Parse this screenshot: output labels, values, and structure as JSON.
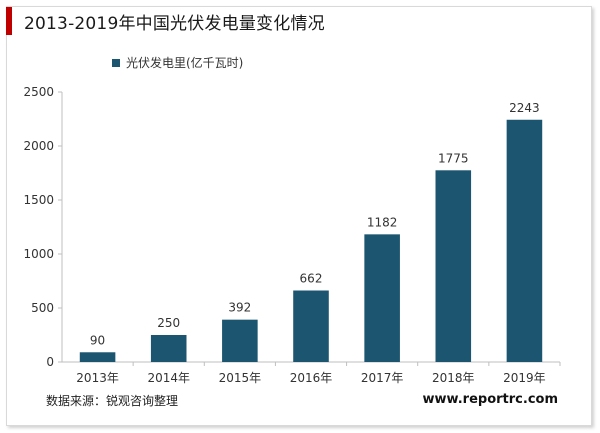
{
  "header": {
    "title": "2013-2019年中国光伏发电量变化情况"
  },
  "footer": {
    "source": "数据来源：锐观咨询整理",
    "website": "www.reportrc.com"
  },
  "colors": {
    "bar": "#1c5570",
    "accent": "#c00000",
    "axis": "#bfbfbf"
  },
  "chart_data": {
    "type": "bar",
    "title": "2013-2019年中国光伏发电量变化情况",
    "xlabel": "",
    "ylabel": "",
    "categories": [
      "2013年",
      "2014年",
      "2015年",
      "2016年",
      "2017年",
      "2018年",
      "2019年"
    ],
    "series": [
      {
        "name": "光伏发电里(亿千瓦时)",
        "values": [
          90,
          250,
          392,
          662,
          1182,
          1775,
          2243
        ]
      }
    ],
    "ylim": [
      0,
      2500
    ],
    "yticks": [
      0,
      500,
      1000,
      1500,
      2000,
      2500
    ],
    "data_labels": true,
    "grid": false,
    "legend_position": "top-left"
  }
}
